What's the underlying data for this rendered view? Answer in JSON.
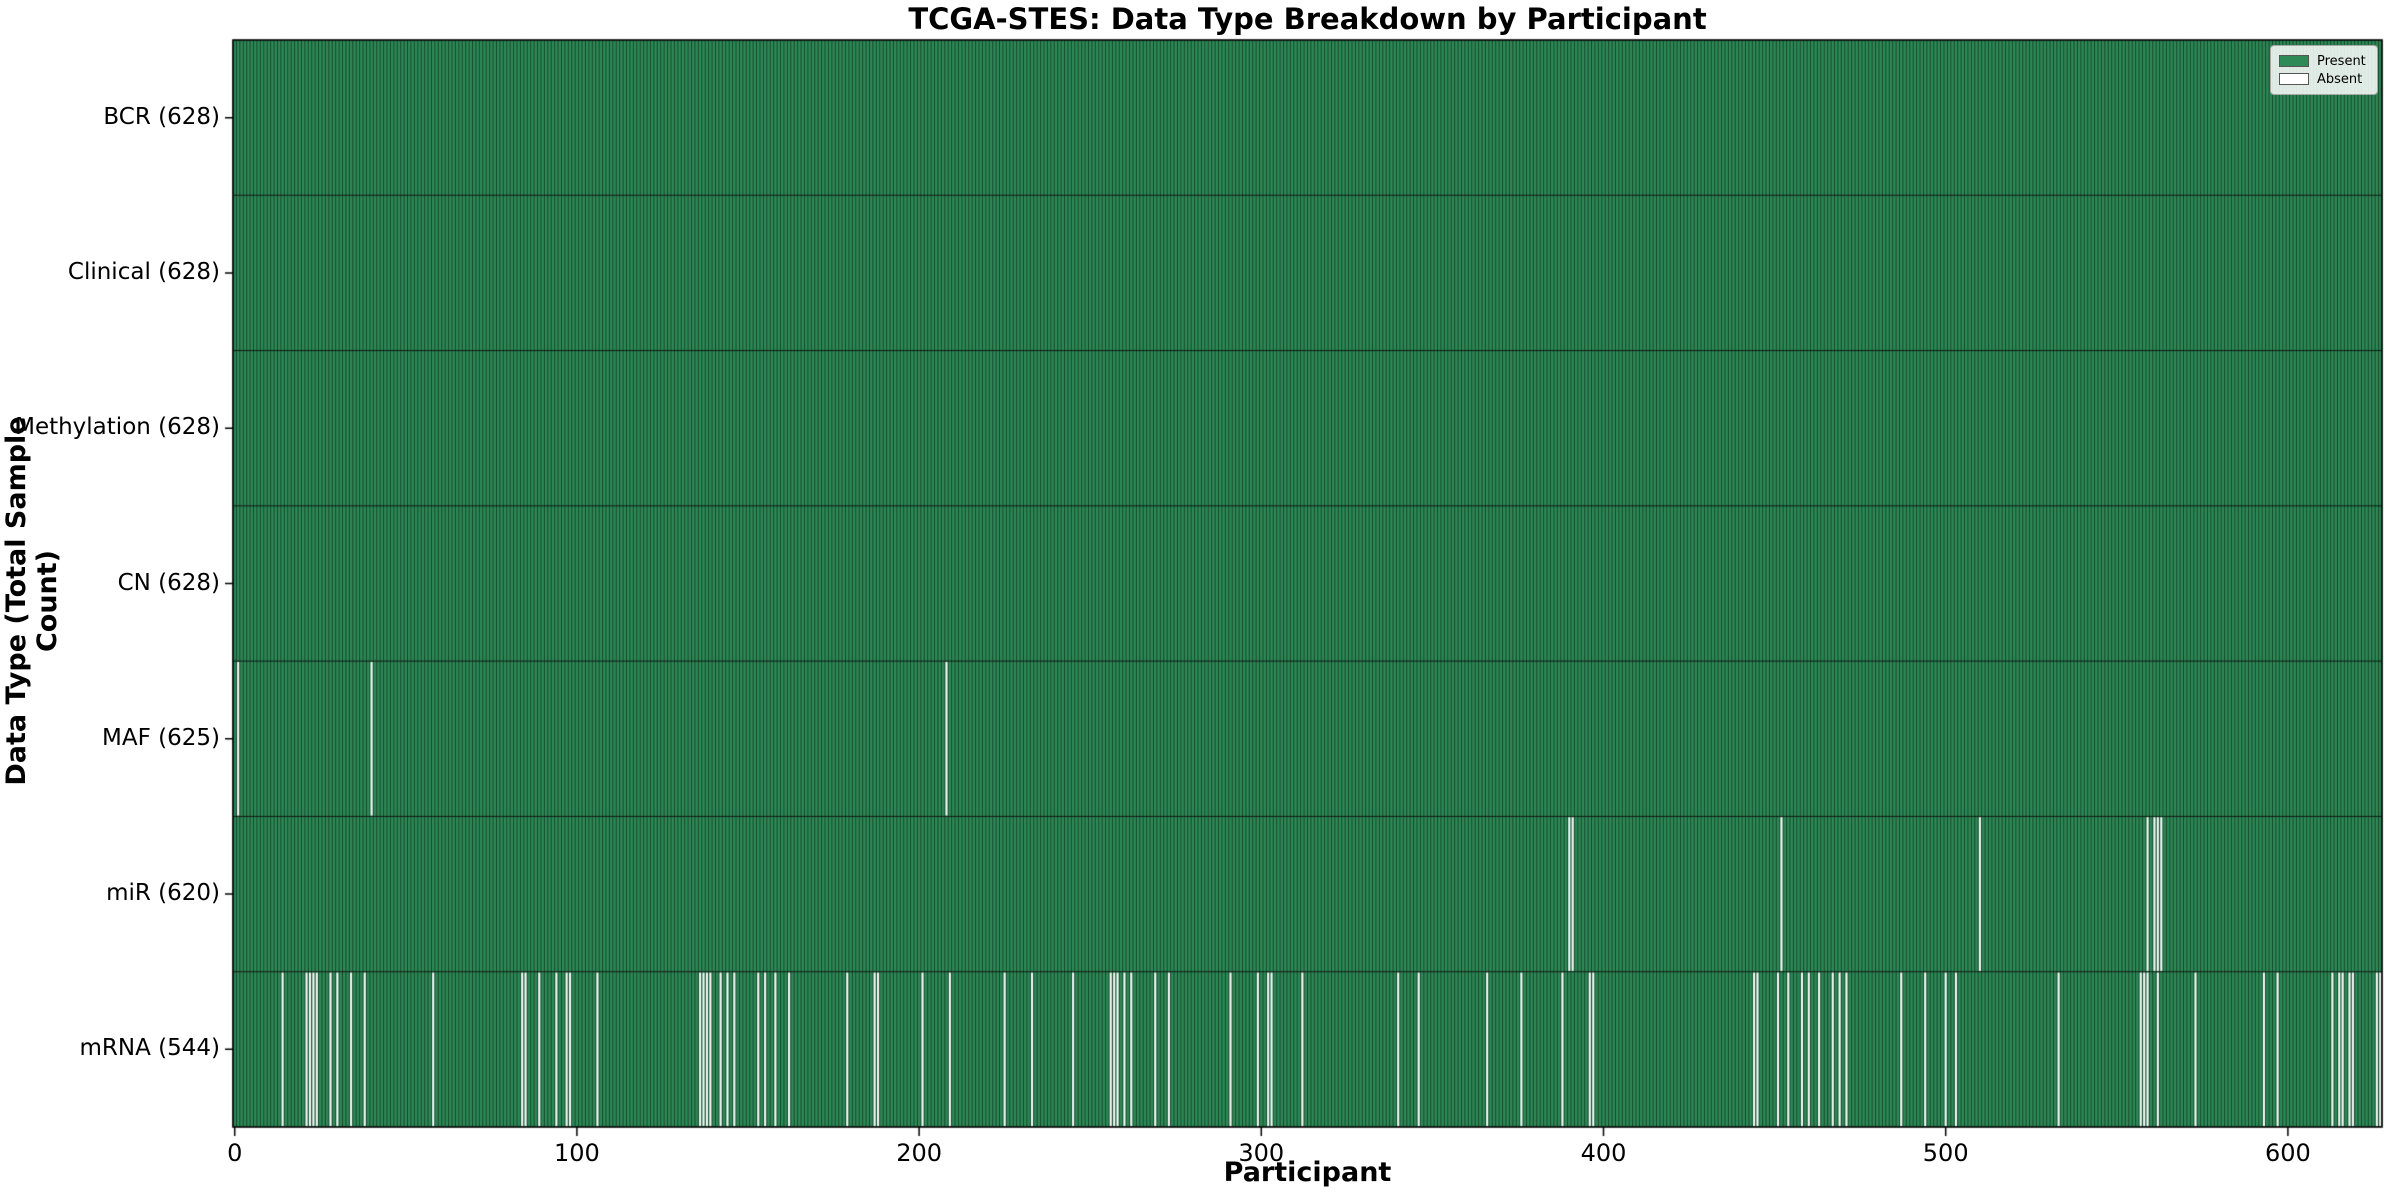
{
  "figure": {
    "title": "TCGA-STES: Data Type Breakdown by Participant",
    "xlabel": "Participant",
    "ylabel": "Data Type (Total Sample Count)"
  },
  "legend": {
    "items": [
      {
        "label": "Present",
        "color": "#2e8b57"
      },
      {
        "label": "Absent",
        "color": "#ffffff"
      }
    ]
  },
  "chart_data": {
    "type": "heatmap",
    "title": "TCGA-STES: Data Type Breakdown by Participant",
    "xlabel": "Participant",
    "ylabel": "Data Type (Total Sample Count)",
    "legend": [
      "Present",
      "Absent"
    ],
    "legend_position": "upper right",
    "n_participants": 628,
    "x_ticks": [
      0,
      100,
      200,
      300,
      400,
      500,
      600
    ],
    "xlim": [
      -0.5,
      627.5
    ],
    "colors": {
      "present": "#2e8b57",
      "absent": "#fcfcfc",
      "bar_edge": "rgba(10,40,25,0.72)",
      "row_divider": "rgba(0,0,0,0.85)",
      "frame": "#000000"
    },
    "rows": [
      {
        "name": "BCR",
        "label": "BCR (628)",
        "present_count": 628,
        "absent_participants": []
      },
      {
        "name": "Clinical",
        "label": "Clinical (628)",
        "present_count": 628,
        "absent_participants": []
      },
      {
        "name": "Methylation",
        "label": "Methylation (628)",
        "present_count": 628,
        "absent_participants": []
      },
      {
        "name": "CN",
        "label": "CN (628)",
        "present_count": 628,
        "absent_participants": []
      },
      {
        "name": "MAF",
        "label": "MAF (625)",
        "present_count": 625,
        "absent_participants": [
          1,
          40,
          208
        ]
      },
      {
        "name": "miR",
        "label": "miR (620)",
        "present_count": 620,
        "absent_participants": [
          390,
          391,
          452,
          510,
          559,
          561,
          562,
          563
        ]
      },
      {
        "name": "mRNA",
        "label": "mRNA (544)",
        "present_count": 544,
        "absent_participants": [
          14,
          21,
          22,
          23,
          24,
          28,
          30,
          34,
          38,
          58,
          84,
          85,
          89,
          94,
          97,
          98,
          106,
          136,
          137,
          138,
          139,
          142,
          144,
          146,
          153,
          155,
          158,
          162,
          179,
          187,
          188,
          201,
          209,
          225,
          233,
          245,
          256,
          257,
          258,
          260,
          262,
          269,
          273,
          291,
          299,
          302,
          303,
          312,
          340,
          346,
          366,
          376,
          388,
          396,
          397,
          444,
          445,
          451,
          454,
          458,
          460,
          463,
          467,
          469,
          471,
          487,
          494,
          500,
          503,
          533,
          557,
          558,
          559,
          562,
          573,
          593,
          597,
          613,
          615,
          616,
          618,
          619,
          626,
          627
        ]
      }
    ]
  }
}
